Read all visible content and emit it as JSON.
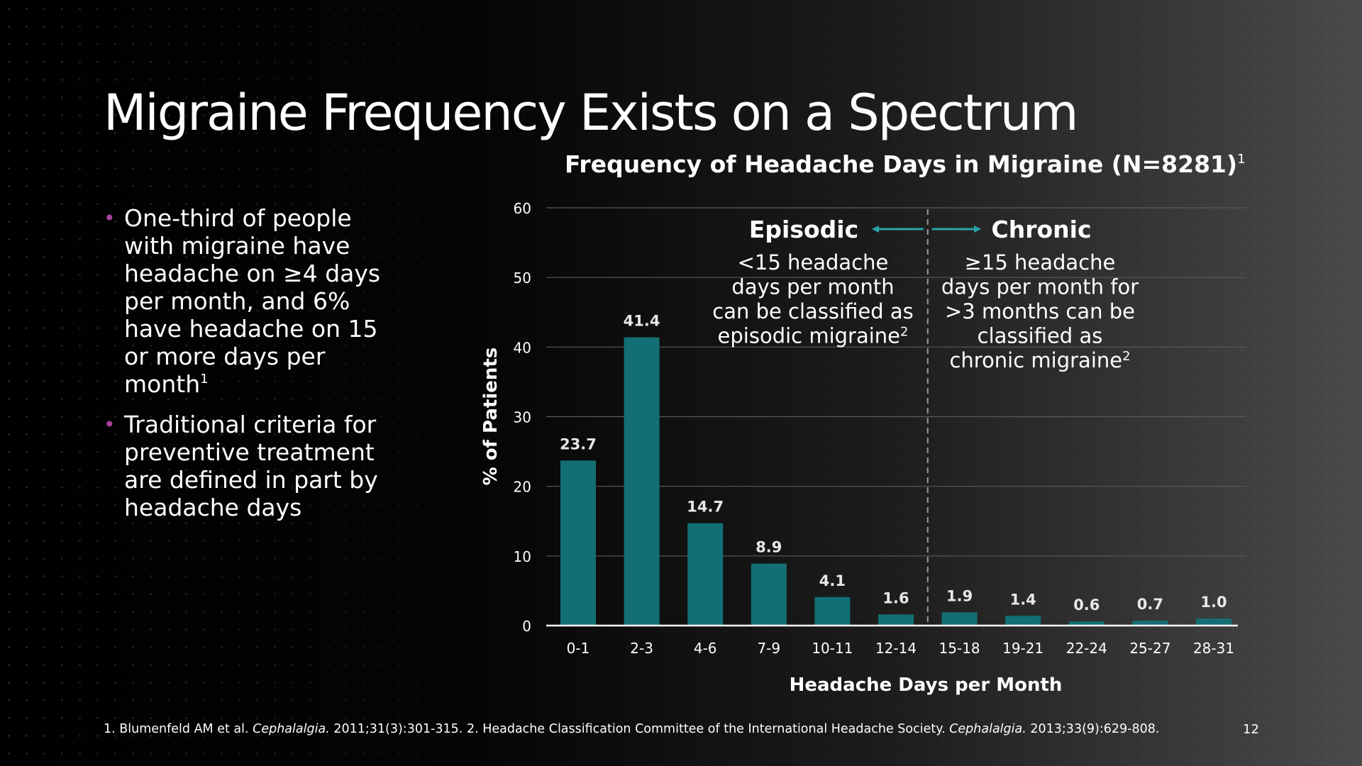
{
  "slide": {
    "title": "Migraine Frequency Exists on a Spectrum",
    "page_number": "12",
    "bullets": [
      {
        "text": "One-third of people with migraine have headache on ≥4 days per month, and 6% have headache on 15 or more days per month",
        "sup": "1"
      },
      {
        "text": "Traditional criteria for preventive treatment are defined in part by headache days",
        "sup": ""
      }
    ],
    "footnote": {
      "ref1_pre": "1. Blumenfeld AM et al. ",
      "ref1_journal": "Cephalalgia.",
      "ref1_post": " 2011;31(3):301-315. 2. Headache Classification Committee of the International Headache Society. ",
      "ref2_journal": "Cephalalgia.",
      "ref2_post": " 2013;33(9):629-808."
    }
  },
  "chart_data": {
    "type": "bar",
    "title": "Frequency of Headache Days in Migraine (N=8281)",
    "title_sup": "1",
    "xlabel": "Headache Days per Month",
    "ylabel": "% of Patients",
    "ylim": [
      0,
      60
    ],
    "yticks": [
      0,
      10,
      20,
      30,
      40,
      50,
      60
    ],
    "grid": true,
    "categories": [
      "0-1",
      "2-3",
      "4-6",
      "7-9",
      "10-11",
      "12-14",
      "15-18",
      "19-21",
      "22-24",
      "25-27",
      "28-31"
    ],
    "values": [
      23.7,
      41.4,
      14.7,
      8.9,
      4.1,
      1.6,
      1.9,
      1.4,
      0.6,
      0.7,
      1.0
    ],
    "value_labels": [
      "23.7",
      "41.4",
      "14.7",
      "8.9",
      "4.1",
      "1.6",
      "1.9",
      "1.4",
      "0.6",
      "0.7",
      "1.0"
    ],
    "bar_color": "#136f73",
    "arrow_color": "#2aa6a8",
    "divider_after_category": "12-14",
    "annotations": {
      "episodic": {
        "heading": "Episodic",
        "lines": [
          "<15 headache",
          "days per month",
          "can be classified as",
          "episodic migraine"
        ],
        "sup": "2"
      },
      "chronic": {
        "heading": "Chronic",
        "lines": [
          "≥15 headache",
          "days per month for",
          ">3 months can be",
          "classified as",
          "chronic migraine"
        ],
        "sup": "2"
      }
    }
  }
}
